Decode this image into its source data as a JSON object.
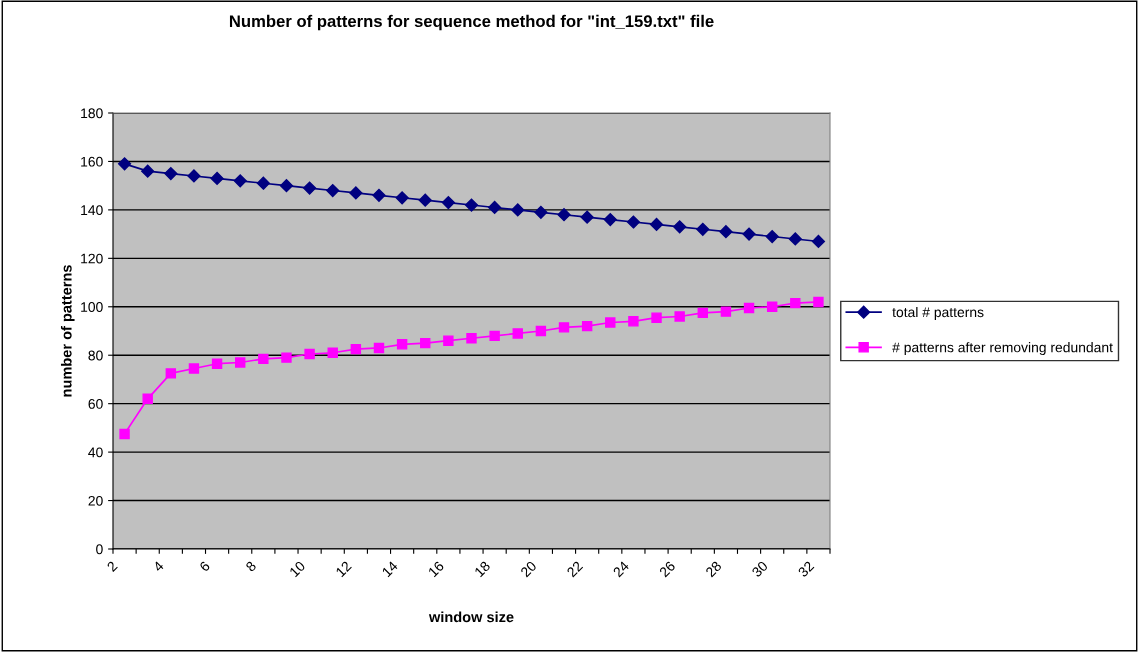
{
  "chart_data": {
    "type": "line",
    "title": "Number of patterns for sequence method for \"int_159.txt\" file",
    "xlabel": "window size",
    "ylabel": "number of patterns",
    "x": [
      2.5,
      3.5,
      4.5,
      5.5,
      6.5,
      7.5,
      8.5,
      9.5,
      10.5,
      11.5,
      12.5,
      13.5,
      14.5,
      15.5,
      16.5,
      17.5,
      18.5,
      19.5,
      20.5,
      21.5,
      22.5,
      23.5,
      24.5,
      25.5,
      26.5,
      27.5,
      28.5,
      29.5,
      30.5,
      31.5,
      32.5
    ],
    "xlim": [
      2,
      33
    ],
    "xticks": [
      2,
      {
        "value": 3,
        "label": null
      },
      4,
      {
        "value": 5,
        "label": null
      },
      6,
      {
        "value": 7,
        "label": null
      },
      8,
      {
        "value": 9,
        "label": null
      },
      10,
      {
        "value": 11,
        "label": null
      },
      12,
      {
        "value": 13,
        "label": null
      },
      14,
      {
        "value": 15,
        "label": null
      },
      16,
      {
        "value": 17,
        "label": null
      },
      18,
      {
        "value": 19,
        "label": null
      },
      20,
      {
        "value": 21,
        "label": null
      },
      22,
      {
        "value": 23,
        "label": null
      },
      24,
      {
        "value": 25,
        "label": null
      },
      26,
      {
        "value": 27,
        "label": null
      },
      28,
      {
        "value": 29,
        "label": null
      },
      30,
      {
        "value": 31,
        "label": null
      },
      32,
      {
        "value": 33,
        "label": null
      }
    ],
    "series": [
      {
        "name": "total # patterns",
        "color": "#000080",
        "marker": "diamond",
        "values": [
          159,
          156,
          155,
          154,
          153,
          152,
          151,
          150,
          149,
          148,
          147,
          146,
          145,
          144,
          143,
          142,
          141,
          140,
          139,
          138,
          137,
          136,
          135,
          134,
          133,
          132,
          131,
          130,
          129,
          128,
          127
        ]
      },
      {
        "name": "# patterns after removing redundant",
        "color": "#ff00ff",
        "marker": "square",
        "values": [
          47.5,
          62,
          72.5,
          74.5,
          76.5,
          77,
          78.5,
          79,
          80.5,
          81,
          82.5,
          83,
          84.5,
          85,
          86,
          87,
          88,
          89,
          90,
          91.5,
          92,
          93.5,
          94,
          95.5,
          96,
          97.5,
          98,
          99.5,
          100,
          101.5,
          102
        ]
      }
    ],
    "ylim": [
      0,
      180
    ],
    "yticks": [
      0,
      20,
      40,
      60,
      80,
      100,
      120,
      140,
      160,
      180
    ],
    "grid": "y",
    "legend": "right"
  }
}
